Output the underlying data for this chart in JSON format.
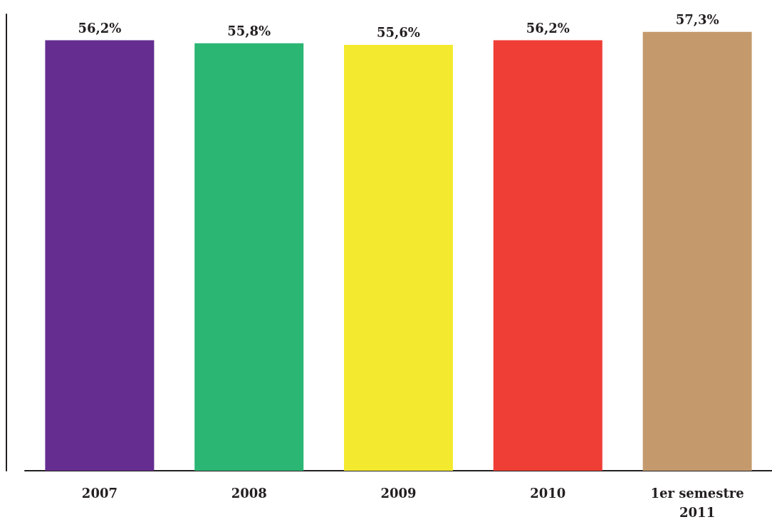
{
  "chart_data": {
    "type": "bar",
    "categories": [
      "2007",
      "2008",
      "2009",
      "2010",
      "1er semestre\n2011"
    ],
    "values": [
      56.2,
      55.8,
      55.6,
      56.2,
      57.3
    ],
    "colors": [
      "#652d90",
      "#2bb673",
      "#f3ea2f",
      "#ef3e36",
      "#c49a6c"
    ],
    "value_labels": [
      "56,2%",
      "55,8%",
      "55,6%",
      "56,2%",
      "57,3%"
    ],
    "tick_labels": "x"
  }
}
